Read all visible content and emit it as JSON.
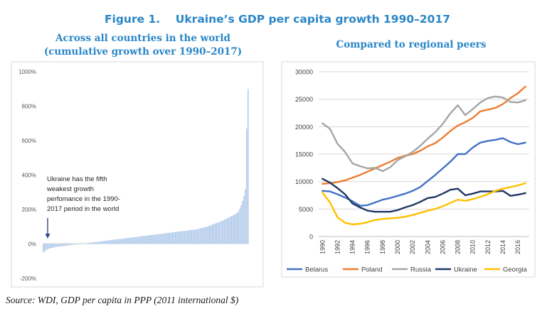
{
  "figure": {
    "title": "Figure 1.    Ukraine’s GDP per capita growth 1990–2017",
    "source": "Source: WDI, GDP per capita in PPP (2011 international $)"
  },
  "chart_data": [
    {
      "type": "bar",
      "title_lines": [
        "Across all countries in the world",
        "(cumulative growth over 1990–2017)"
      ],
      "ylim": [
        -200,
        1000
      ],
      "y_ticks": [
        "-200%",
        "0%",
        "200%",
        "400%",
        "600%",
        "800%",
        "1000%"
      ],
      "y_tick_values": [
        -200,
        0,
        200,
        400,
        600,
        800,
        1000
      ],
      "grid": false,
      "bar_color": "#a9c4e8",
      "annotation": {
        "lines": [
          "Ukraine has the fifth",
          "weakest growth",
          "perfomance in the 1990-",
          "2017 period in the world"
        ],
        "arrow_to_bar_index": 4
      },
      "values": [
        -48,
        -44,
        -38,
        -32,
        -28,
        -26,
        -24,
        -22,
        -20,
        -18,
        -17,
        -16,
        -15,
        -14,
        -13,
        -12,
        -11,
        -10,
        -9,
        -8,
        -7,
        -6,
        -5,
        -4,
        -3,
        -2,
        -1,
        0,
        1,
        2,
        3,
        4,
        5,
        6,
        7,
        8,
        9,
        10,
        11,
        12,
        13,
        14,
        15,
        16,
        17,
        18,
        19,
        20,
        21,
        22,
        23,
        24,
        25,
        26,
        27,
        28,
        29,
        30,
        31,
        32,
        33,
        34,
        35,
        36,
        37,
        38,
        39,
        40,
        41,
        42,
        43,
        44,
        45,
        46,
        47,
        48,
        49,
        50,
        51,
        52,
        53,
        54,
        55,
        56,
        57,
        58,
        59,
        60,
        61,
        62,
        63,
        64,
        65,
        66,
        67,
        68,
        69,
        70,
        71,
        72,
        73,
        74,
        75,
        76,
        77,
        78,
        79,
        80,
        81,
        82,
        83,
        84,
        86,
        88,
        90,
        92,
        94,
        96,
        98,
        100,
        103,
        106,
        109,
        112,
        115,
        118,
        121,
        124,
        127,
        130,
        134,
        138,
        142,
        146,
        150,
        154,
        158,
        162,
        166,
        170,
        175,
        180,
        190,
        205,
        225,
        250,
        280,
        320,
        670,
        900
      ]
    },
    {
      "type": "line",
      "title": "Compared to regional peers",
      "ylim": [
        0,
        30000
      ],
      "y_ticks": [
        "0",
        "5000",
        "10000",
        "15000",
        "20000",
        "25000",
        "30000"
      ],
      "y_tick_values": [
        0,
        5000,
        10000,
        15000,
        20000,
        25000,
        30000
      ],
      "x": [
        1990,
        1991,
        1992,
        1993,
        1994,
        1995,
        1996,
        1997,
        1998,
        1999,
        2000,
        2001,
        2002,
        2003,
        2004,
        2005,
        2006,
        2007,
        2008,
        2009,
        2010,
        2011,
        2012,
        2013,
        2014,
        2015,
        2016,
        2017
      ],
      "x_ticks": [
        "1990",
        "1992",
        "1994",
        "1996",
        "1998",
        "2000",
        "2002",
        "2004",
        "2006",
        "2008",
        "2010",
        "2012",
        "2014",
        "2016"
      ],
      "grid": true,
      "legend_position": "bottom",
      "series": [
        {
          "name": "Belarus",
          "color": "#4472c4",
          "values": [
            8300,
            8200,
            7700,
            7100,
            6400,
            5600,
            5700,
            6200,
            6700,
            7000,
            7400,
            7800,
            8300,
            9000,
            10100,
            11200,
            12400,
            13600,
            15000,
            15000,
            16200,
            17100,
            17400,
            17600,
            17900,
            17200,
            16800,
            17100
          ]
        },
        {
          "name": "Poland",
          "color": "#ed7d31",
          "values": [
            9600,
            9700,
            9900,
            10200,
            10700,
            11200,
            11800,
            12400,
            13000,
            13600,
            14300,
            14700,
            15000,
            15600,
            16400,
            17000,
            18000,
            19200,
            20200,
            20800,
            21600,
            22800,
            23100,
            23400,
            24100,
            25200,
            26100,
            27300
          ]
        },
        {
          "name": "Russia",
          "color": "#a5a5a5",
          "values": [
            20600,
            19600,
            16900,
            15400,
            13300,
            12800,
            12400,
            12500,
            11900,
            12600,
            13900,
            14600,
            15400,
            16500,
            17800,
            19000,
            20500,
            22400,
            23900,
            22100,
            23200,
            24400,
            25200,
            25500,
            25300,
            24500,
            24400,
            24800
          ]
        },
        {
          "name": "Ukraine",
          "color": "#1f3864",
          "values": [
            10500,
            9800,
            8800,
            7700,
            6000,
            5300,
            4700,
            4500,
            4500,
            4500,
            4800,
            5300,
            5700,
            6300,
            7000,
            7200,
            7800,
            8500,
            8700,
            7500,
            7800,
            8200,
            8200,
            8200,
            8300,
            7400,
            7600,
            7900
          ]
        },
        {
          "name": "Georgia",
          "color": "#ffc000",
          "values": [
            8000,
            6200,
            3500,
            2500,
            2200,
            2300,
            2600,
            3000,
            3200,
            3300,
            3400,
            3600,
            3900,
            4300,
            4700,
            5000,
            5500,
            6100,
            6700,
            6500,
            6800,
            7200,
            7700,
            8300,
            8700,
            9000,
            9300,
            9700
          ]
        }
      ]
    }
  ]
}
